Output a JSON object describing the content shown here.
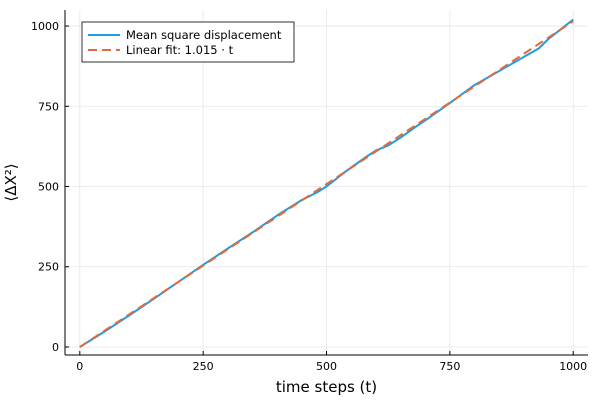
{
  "chart_data": {
    "type": "line",
    "xlabel": "time steps (t)",
    "ylabel": "⟨ΔX²⟩",
    "xlim": [
      -30,
      1030
    ],
    "ylim": [
      -25,
      1050
    ],
    "x_ticks": [
      0,
      250,
      500,
      750,
      1000
    ],
    "y_ticks": [
      0,
      250,
      500,
      750,
      1000
    ],
    "x_tick_labels": [
      "0",
      "250",
      "500",
      "750",
      "1000"
    ],
    "y_tick_labels": [
      "0",
      "250",
      "500",
      "750",
      "1000"
    ],
    "grid": true,
    "legend_position": "top-left",
    "series": [
      {
        "name": "Mean square displacement",
        "color": "#1f9de0",
        "style": "solid",
        "x": [
          0,
          50,
          100,
          150,
          200,
          250,
          300,
          350,
          400,
          450,
          480,
          500,
          540,
          560,
          580,
          600,
          625,
          650,
          680,
          700,
          750,
          800,
          850,
          900,
          930,
          950,
          1000
        ],
        "values": [
          0,
          48,
          98,
          150,
          203,
          256,
          307,
          357,
          410,
          458,
          481,
          500,
          548,
          570,
          592,
          612,
          628,
          652,
          685,
          706,
          760,
          816,
          860,
          904,
          930,
          960,
          1020
        ]
      },
      {
        "name": "Linear fit: 1.015 · t",
        "color": "#e26a3b",
        "style": "dashed",
        "x": [
          0,
          1000
        ],
        "values": [
          0,
          1015
        ]
      }
    ]
  }
}
